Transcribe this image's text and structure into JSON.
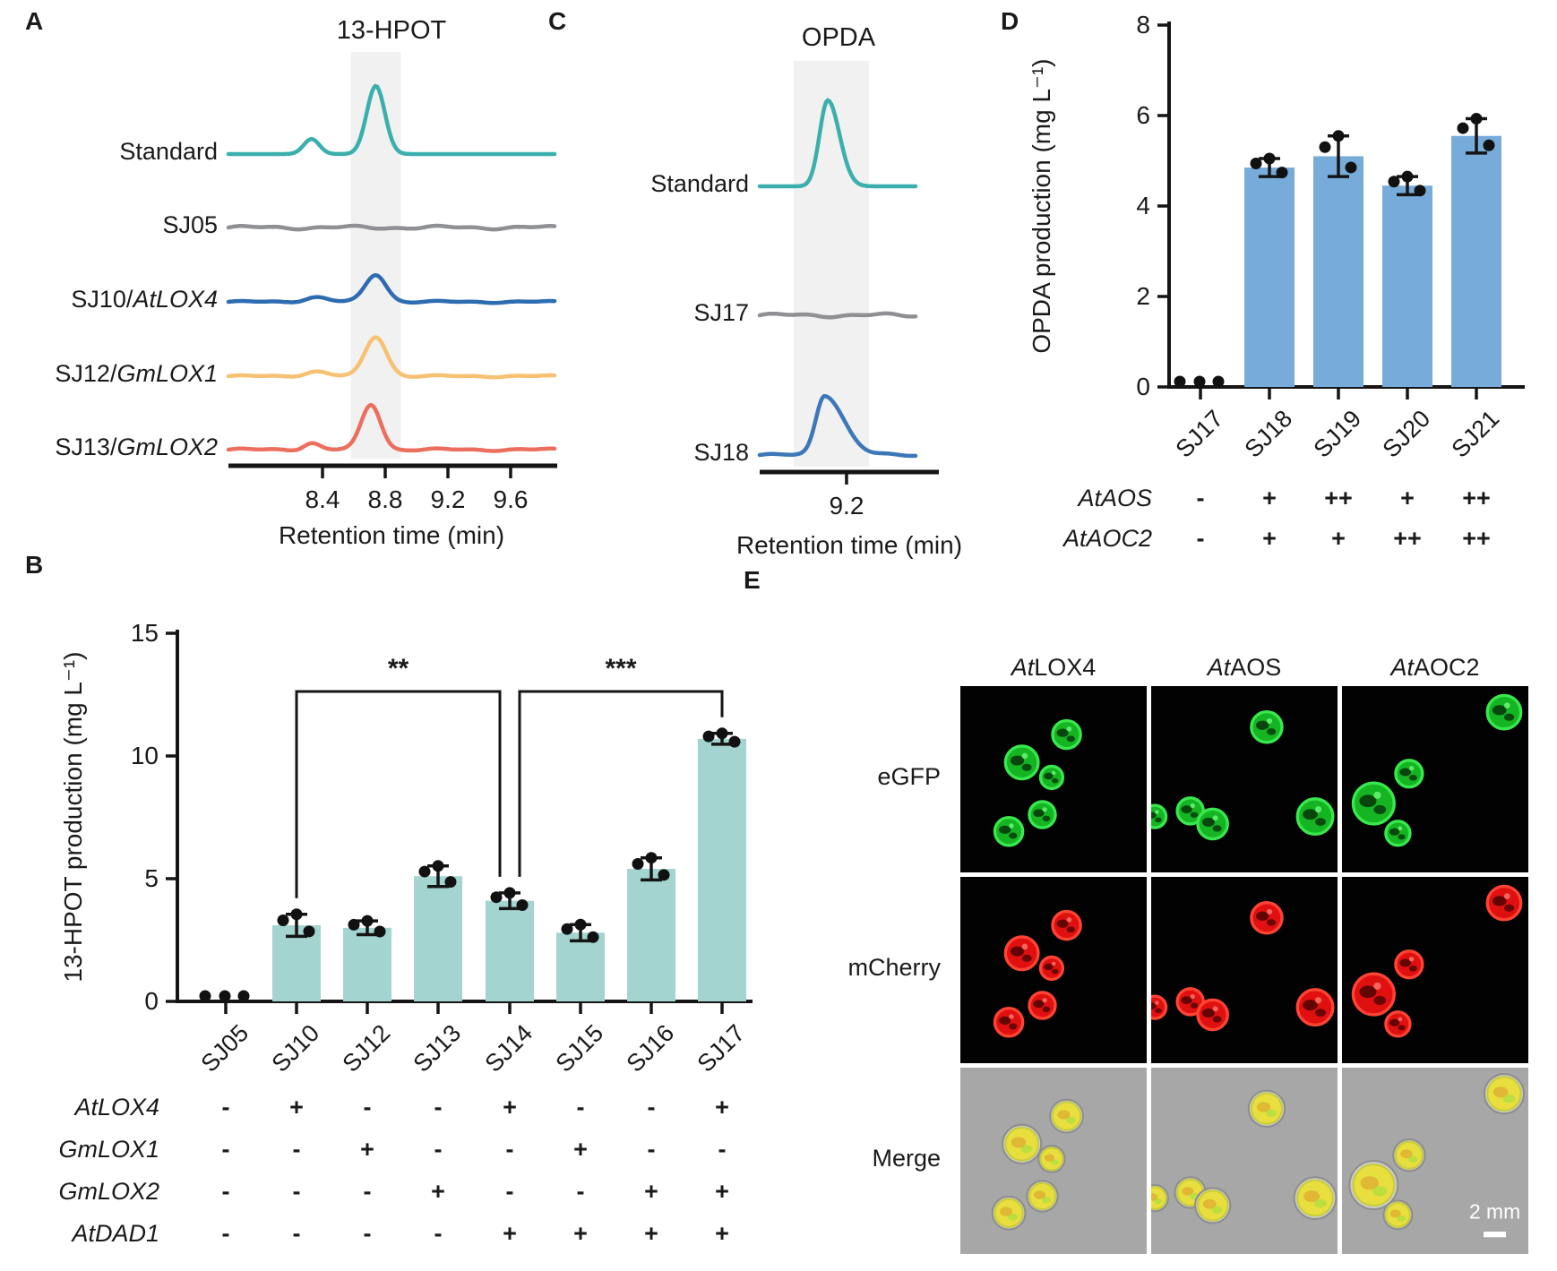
{
  "panels": {
    "A": {
      "letter": "A"
    },
    "B": {
      "letter": "B"
    },
    "C": {
      "letter": "C"
    },
    "D": {
      "letter": "D"
    },
    "E": {
      "letter": "E"
    }
  },
  "chart_data": [
    {
      "id": "A",
      "type": "line",
      "subtype": "chromatogram",
      "title": "13-HPOT",
      "xlabel": "Retention time (min)",
      "xticks": [
        "8.4",
        "8.8",
        "9.2",
        "9.6"
      ],
      "xtick_values": [
        8.4,
        8.8,
        9.2,
        9.6
      ],
      "xlim": [
        7.8,
        9.89
      ],
      "highlight_band_x": [
        8.58,
        8.9
      ],
      "grid": false,
      "series": [
        {
          "label_pre": "Standard",
          "label_it": "",
          "color": "#3BAFAD",
          "peaks": [
            {
              "c": 8.74,
              "h": 1.0,
              "s": 0.058
            },
            {
              "c": 8.33,
              "h": 0.22,
              "s": 0.05
            }
          ],
          "wiggle": 0
        },
        {
          "label_pre": "SJ05",
          "label_it": "",
          "color": "#8F9093",
          "peaks": [],
          "wiggle": 0.035
        },
        {
          "label_pre": "SJ10/",
          "label_it": "AtLOX4",
          "color": "#2E6CB2",
          "peaks": [
            {
              "c": 8.74,
              "h": 0.4,
              "s": 0.066
            },
            {
              "c": 8.36,
              "h": 0.07,
              "s": 0.07
            }
          ],
          "wiggle": 0.02
        },
        {
          "label_pre": "SJ12/",
          "label_it": "GmLOX1",
          "color": "#F6C172",
          "peaks": [
            {
              "c": 8.74,
              "h": 0.58,
              "s": 0.068
            },
            {
              "c": 8.36,
              "h": 0.07,
              "s": 0.07
            }
          ],
          "wiggle": 0.02
        },
        {
          "label_pre": "SJ13/",
          "label_it": "GmLOX2",
          "color": "#EC6F5E",
          "peaks": [
            {
              "c": 8.71,
              "h": 0.66,
              "s": 0.062
            },
            {
              "c": 8.33,
              "h": 0.1,
              "s": 0.05
            }
          ],
          "wiggle": 0.025
        }
      ]
    },
    {
      "id": "C",
      "type": "line",
      "subtype": "chromatogram",
      "title": "OPDA",
      "xlabel": "Retention time (min)",
      "xticks": [
        "9.2"
      ],
      "xtick_values": [
        9.2
      ],
      "xlim": [
        8.646,
        9.64
      ],
      "highlight_band_x": [
        8.863,
        9.343
      ],
      "grid": false,
      "series": [
        {
          "label_pre": "Standard",
          "label_it": "",
          "color": "#3BAFAD",
          "peaks": [
            {
              "c": 9.08,
              "h": 1.0,
              "sl": 0.052,
              "sr": 0.075
            }
          ],
          "wiggle": 0
        },
        {
          "label_pre": "SJ17",
          "label_it": "",
          "color": "#8F9093",
          "peaks": [],
          "wiggle": 0.03
        },
        {
          "label_pre": "SJ18",
          "label_it": "",
          "color": "#3C78B8",
          "peaks": [
            {
              "c": 9.06,
              "h": 0.7,
              "sl": 0.055,
              "sr": 0.12
            }
          ],
          "wiggle": 0.02
        }
      ]
    },
    {
      "id": "B",
      "type": "bar",
      "ylabel": "13-HPOT production (mg L⁻¹)",
      "ylim": [
        0,
        15
      ],
      "yticks": [
        0,
        5,
        10,
        15
      ],
      "bar_color": "#A3D4D0",
      "dot_color": "#111111",
      "grid": false,
      "legend": null,
      "categories": [
        "SJ05",
        "SJ10",
        "SJ12",
        "SJ13",
        "SJ14",
        "SJ15",
        "SJ16",
        "SJ17"
      ],
      "values": [
        0,
        3.1,
        3.0,
        5.1,
        4.1,
        2.8,
        5.4,
        10.7
      ],
      "errors": [
        0,
        0.45,
        0.28,
        0.42,
        0.32,
        0.33,
        0.45,
        0.22
      ],
      "significance": [
        {
          "from": "SJ10",
          "to": "SJ14",
          "label": "**"
        },
        {
          "from": "SJ14",
          "to": "SJ17",
          "label": "***"
        }
      ],
      "conditions": {
        "row_labels": [
          "AtLOX4",
          "GmLOX1",
          "GmLOX2",
          "AtDAD1"
        ],
        "matrix": [
          [
            "-",
            "+",
            "-",
            "-",
            "+",
            "-",
            "-",
            "+"
          ],
          [
            "-",
            "-",
            "+",
            "-",
            "-",
            "+",
            "-",
            "-"
          ],
          [
            "-",
            "-",
            "-",
            "+",
            "-",
            "-",
            "+",
            "+"
          ],
          [
            "-",
            "-",
            "-",
            "-",
            "+",
            "+",
            "+",
            "+"
          ]
        ]
      }
    },
    {
      "id": "D",
      "type": "bar",
      "ylabel": "OPDA production (mg L⁻¹)",
      "ylim": [
        0,
        8
      ],
      "yticks": [
        0,
        2,
        4,
        6,
        8
      ],
      "bar_color": "#77ABD9",
      "dot_color": "#111111",
      "grid": false,
      "legend": null,
      "categories": [
        "SJ17",
        "SJ18",
        "SJ19",
        "SJ20",
        "SJ21"
      ],
      "values": [
        0,
        4.85,
        5.1,
        4.45,
        5.55
      ],
      "errors": [
        0,
        0.2,
        0.45,
        0.2,
        0.38
      ],
      "significance": [],
      "conditions": {
        "row_labels": [
          "AtAOS",
          "AtAOC2"
        ],
        "matrix": [
          [
            "-",
            "+",
            "++",
            "+",
            "++"
          ],
          [
            "-",
            "+",
            "+",
            "++",
            "++"
          ]
        ]
      }
    },
    {
      "id": "E",
      "type": "microscopy",
      "columns": [
        {
          "it": "At",
          "rest": "LOX4"
        },
        {
          "it": "At",
          "rest": "AOS"
        },
        {
          "it": "At",
          "rest": "AOC2"
        }
      ],
      "rows": [
        "eGFP",
        "mCherry",
        "Merge"
      ],
      "scale_bar_label": "2 mm",
      "cell_colors": {
        "egfp": "#14B423",
        "mcherry": "#E01010",
        "merge": "#E8DF3E",
        "merge_bg": "#A7A7A7"
      },
      "cells": {
        "0": [
          [
            57,
            26,
            7.5
          ],
          [
            33,
            41,
            8.8
          ],
          [
            49,
            49,
            6.0
          ],
          [
            44,
            69,
            7.0
          ],
          [
            26,
            78,
            7.5
          ]
        ],
        "1": [
          [
            62,
            22,
            8.2
          ],
          [
            2,
            70,
            6.0
          ],
          [
            21,
            67,
            7.0
          ],
          [
            33,
            74,
            8.0
          ],
          [
            88,
            70,
            9.5
          ]
        ],
        "2": [
          [
            87,
            14,
            9.0
          ],
          [
            36,
            47,
            7.2
          ],
          [
            17,
            63,
            11.0
          ],
          [
            30,
            79,
            6.5
          ]
        ]
      }
    }
  ]
}
